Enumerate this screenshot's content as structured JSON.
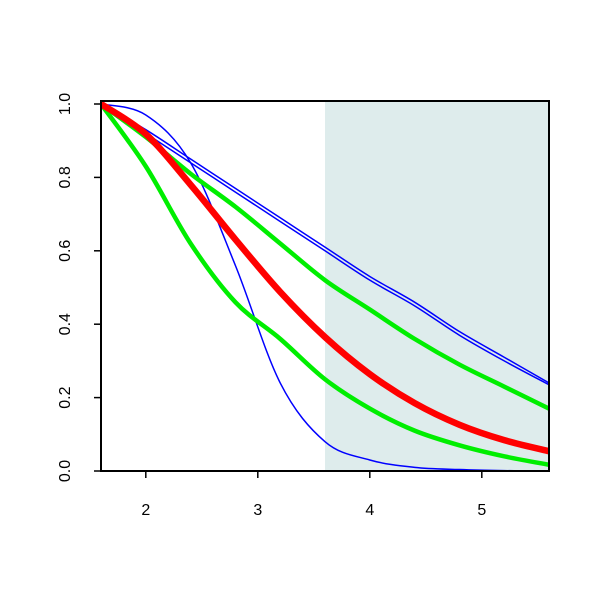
{
  "chart_data": {
    "type": "line",
    "x": [
      1.6,
      2.0,
      2.4,
      2.8,
      3.2,
      3.6,
      4.0,
      4.4,
      4.8,
      5.2,
      5.6
    ],
    "series": [
      {
        "color": "#0000ff",
        "width": 1.5,
        "values": [
          1,
          0.97,
          0.84,
          0.56,
          0.24,
          0.08,
          0.03,
          0.01,
          0.004,
          0.001,
          0
        ]
      },
      {
        "color": "#0000ff",
        "width": 1.5,
        "values": [
          1,
          0.93,
          0.85,
          0.77,
          0.69,
          0.61,
          0.53,
          0.46,
          0.38,
          0.31,
          0.24
        ]
      },
      {
        "color": "#0000ff",
        "width": 1.5,
        "values": [
          1,
          0.92,
          0.84,
          0.76,
          0.68,
          0.6,
          0.52,
          0.45,
          0.37,
          0.3,
          0.235
        ]
      },
      {
        "color": "#00ee00",
        "width": 4.5,
        "values": [
          1,
          0.91,
          0.81,
          0.72,
          0.62,
          0.52,
          0.44,
          0.36,
          0.29,
          0.23,
          0.17
        ]
      },
      {
        "color": "#00ee00",
        "width": 4.5,
        "values": [
          1,
          0.83,
          0.62,
          0.46,
          0.36,
          0.25,
          0.17,
          0.11,
          0.07,
          0.04,
          0.017
        ]
      },
      {
        "color": "#ff0000",
        "width": 6.5,
        "values": [
          1,
          0.918,
          0.78,
          0.631,
          0.488,
          0.365,
          0.264,
          0.185,
          0.126,
          0.084,
          0.054
        ]
      }
    ],
    "shaded_region": {
      "xlim": [
        3.6,
        5.6
      ],
      "color": "#deecec"
    },
    "xlim": [
      1.6,
      5.6
    ],
    "ylim": [
      0,
      1
    ],
    "xticks": [
      2,
      3,
      4,
      5
    ],
    "yticks": [
      {
        "value": 0,
        "label": "0.0"
      },
      {
        "value": 0.2,
        "label": "0.2"
      },
      {
        "value": 0.4,
        "label": "0.4"
      },
      {
        "value": 0.6,
        "label": "0.6"
      },
      {
        "value": 0.8,
        "label": "0.8"
      },
      {
        "value": 1,
        "label": "1.0"
      }
    ]
  }
}
